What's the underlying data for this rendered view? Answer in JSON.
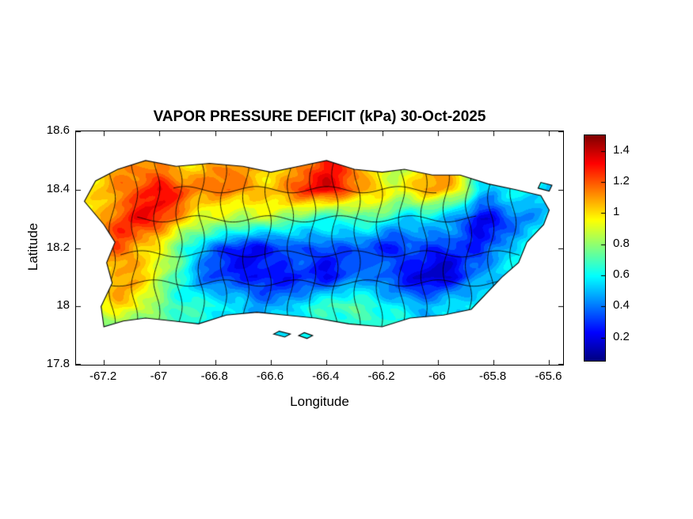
{
  "chart_data": {
    "type": "heatmap",
    "title": "VAPOR PRESSURE DEFICIT (kPa) 30-Oct-2025",
    "xlabel": "Longitude",
    "ylabel": "Latitude",
    "units": "kPa",
    "date": "30-Oct-2025",
    "xlim": [
      -67.3,
      -65.55
    ],
    "ylim": [
      17.8,
      18.6
    ],
    "xticks": [
      -67.2,
      -67,
      -66.8,
      -66.6,
      -66.4,
      -66.2,
      -66,
      -65.8,
      -65.6
    ],
    "yticks": [
      17.8,
      18,
      18.2,
      18.4,
      18.6
    ],
    "colormap": "jet",
    "clim": [
      0.05,
      1.5
    ],
    "colorbar_ticks": [
      0.2,
      0.4,
      0.6,
      0.8,
      1,
      1.2,
      1.4
    ],
    "grid": {
      "x": [
        -67.3,
        -67.25,
        -67.2,
        -67.15,
        -67.1,
        -67.05,
        -67,
        -66.95,
        -66.9,
        -66.85,
        -66.8,
        -66.75,
        -66.7,
        -66.65,
        -66.6,
        -66.55,
        -66.5,
        -66.45,
        -66.4,
        -66.35,
        -66.3,
        -66.25,
        -66.2,
        -66.15,
        -66.1,
        -66.05,
        -66,
        -65.95,
        -65.9,
        -65.85,
        -65.8,
        -65.75,
        -65.7,
        -65.65,
        -65.6,
        -65.55
      ],
      "y": [
        17.8,
        17.9,
        18,
        18.1,
        18.2,
        18.3,
        18.4,
        18.5,
        18.6
      ],
      "z": [
        [
          0.6,
          0.6,
          0.6,
          0.6,
          0.6,
          0.6,
          0.6,
          0.6,
          0.6,
          0.6,
          0.6,
          0.6,
          0.6,
          0.6,
          0.6,
          0.6,
          0.6,
          0.6,
          0.6,
          0.6,
          0.6,
          0.6,
          0.6,
          0.6,
          0.6,
          0.6,
          0.6,
          0.6,
          0.6,
          0.6,
          0.6,
          0.6,
          0.6,
          0.6,
          0.6,
          0.6
        ],
        [
          0.65,
          0.68,
          0.72,
          0.7,
          0.68,
          0.66,
          0.64,
          0.62,
          0.6,
          0.6,
          0.58,
          0.56,
          0.55,
          0.54,
          0.55,
          0.56,
          0.58,
          0.6,
          0.62,
          0.64,
          0.66,
          0.64,
          0.62,
          0.6,
          0.55,
          0.52,
          0.55,
          0.58,
          0.6,
          0.62,
          0.62,
          0.6,
          0.6,
          0.6,
          0.6,
          0.6
        ],
        [
          0.7,
          0.8,
          0.9,
          1,
          1,
          0.9,
          0.8,
          0.7,
          0.65,
          0.6,
          0.6,
          0.55,
          0.55,
          0.5,
          0.5,
          0.5,
          0.55,
          0.6,
          0.65,
          0.7,
          0.75,
          0.7,
          0.65,
          0.6,
          0.5,
          0.45,
          0.5,
          0.55,
          0.6,
          0.65,
          0.65,
          0.6,
          0.6,
          0.6,
          0.6,
          0.6
        ],
        [
          0.8,
          0.9,
          1,
          1.1,
          1.05,
          0.95,
          0.85,
          0.7,
          0.6,
          0.45,
          0.35,
          0.3,
          0.25,
          0.2,
          0.2,
          0.25,
          0.3,
          0.3,
          0.25,
          0.3,
          0.35,
          0.4,
          0.35,
          0.3,
          0.25,
          0.2,
          0.15,
          0.2,
          0.3,
          0.4,
          0.5,
          0.55,
          0.6,
          0.6,
          0.6,
          0.6
        ],
        [
          0.9,
          1,
          1.15,
          1.2,
          1.15,
          1.05,
          0.95,
          0.8,
          0.6,
          0.45,
          0.35,
          0.3,
          0.25,
          0.25,
          0.3,
          0.3,
          0.35,
          0.3,
          0.3,
          0.35,
          0.4,
          0.35,
          0.3,
          0.25,
          0.3,
          0.3,
          0.25,
          0.3,
          0.35,
          0.3,
          0.4,
          0.5,
          0.55,
          0.6,
          0.6,
          0.6
        ],
        [
          0.9,
          1,
          1.1,
          1.2,
          1.25,
          1.3,
          1.25,
          1.15,
          1.05,
          0.95,
          0.9,
          0.85,
          0.8,
          0.8,
          0.85,
          0.8,
          0.75,
          0.7,
          0.65,
          0.6,
          0.65,
          0.7,
          0.65,
          0.6,
          0.55,
          0.6,
          0.55,
          0.45,
          0.3,
          0.15,
          0.2,
          0.35,
          0.45,
          0.5,
          0.55,
          0.55
        ],
        [
          0.85,
          0.95,
          1.05,
          1.15,
          1.2,
          1.3,
          1.35,
          1.25,
          1.15,
          1.1,
          1.15,
          1.2,
          1.15,
          1.1,
          1.05,
          1.1,
          1.2,
          1.3,
          1.35,
          1.3,
          1.2,
          1.1,
          1,
          0.9,
          0.95,
          1.05,
          1.1,
          1.05,
          0.9,
          0.6,
          0.5,
          0.55,
          0.6,
          0.55,
          0.5,
          0.5
        ],
        [
          0.8,
          0.85,
          0.95,
          1,
          1.05,
          1.1,
          1.1,
          1.05,
          1,
          1,
          1.05,
          1.1,
          1.05,
          1,
          1,
          1.05,
          1.1,
          1.2,
          1.25,
          1.2,
          1.1,
          1,
          0.95,
          0.85,
          0.9,
          1,
          1.05,
          1,
          0.9,
          0.7,
          0.6,
          0.6,
          0.6,
          0.55,
          0.5,
          0.5
        ],
        [
          0.8,
          0.85,
          0.95,
          1,
          1.05,
          1.1,
          1.1,
          1.05,
          1,
          1,
          1.05,
          1.1,
          1.05,
          1,
          1,
          1.05,
          1.1,
          1.2,
          1.25,
          1.2,
          1.1,
          1,
          0.95,
          0.85,
          0.9,
          1,
          1.05,
          1,
          0.9,
          0.7,
          0.6,
          0.6,
          0.6,
          0.55,
          0.5,
          0.5
        ]
      ]
    },
    "map": {
      "outline": [
        [
          -67.27,
          18.36
        ],
        [
          -67.23,
          18.43
        ],
        [
          -67.15,
          18.47
        ],
        [
          -67.05,
          18.5
        ],
        [
          -66.94,
          18.48
        ],
        [
          -66.82,
          18.49
        ],
        [
          -66.7,
          18.48
        ],
        [
          -66.6,
          18.46
        ],
        [
          -66.5,
          18.48
        ],
        [
          -66.4,
          18.5
        ],
        [
          -66.3,
          18.47
        ],
        [
          -66.2,
          18.46
        ],
        [
          -66.12,
          18.47
        ],
        [
          -66.02,
          18.45
        ],
        [
          -65.92,
          18.45
        ],
        [
          -65.82,
          18.42
        ],
        [
          -65.72,
          18.4
        ],
        [
          -65.63,
          18.38
        ],
        [
          -65.6,
          18.33
        ],
        [
          -65.62,
          18.28
        ],
        [
          -65.68,
          18.22
        ],
        [
          -65.71,
          18.15
        ],
        [
          -65.77,
          18.1
        ],
        [
          -65.83,
          18.04
        ],
        [
          -65.88,
          17.99
        ],
        [
          -65.98,
          17.97
        ],
        [
          -66.1,
          17.96
        ],
        [
          -66.2,
          17.93
        ],
        [
          -66.32,
          17.94
        ],
        [
          -66.44,
          17.96
        ],
        [
          -66.55,
          17.97
        ],
        [
          -66.65,
          17.98
        ],
        [
          -66.76,
          17.97
        ],
        [
          -66.86,
          17.94
        ],
        [
          -66.95,
          17.95
        ],
        [
          -67.05,
          17.96
        ],
        [
          -67.13,
          17.95
        ],
        [
          -67.2,
          17.93
        ],
        [
          -67.21,
          18
        ],
        [
          -67.17,
          18.08
        ],
        [
          -67.19,
          18.15
        ],
        [
          -67.16,
          18.22
        ],
        [
          -67.2,
          18.28
        ],
        [
          -67.27,
          18.36
        ]
      ],
      "islets": [
        [
          [
            -66.59,
            17.905
          ],
          [
            -66.55,
            17.895
          ],
          [
            -66.53,
            17.905
          ],
          [
            -66.57,
            17.915
          ]
        ],
        [
          [
            -66.5,
            17.9
          ],
          [
            -66.47,
            17.89
          ],
          [
            -66.45,
            17.9
          ],
          [
            -66.48,
            17.91
          ]
        ],
        [
          [
            -65.64,
            18.405
          ],
          [
            -65.6,
            18.395
          ],
          [
            -65.59,
            18.415
          ],
          [
            -65.63,
            18.425
          ]
        ]
      ],
      "boundaries": {
        "meridians": [
          -67.17,
          -67.09,
          -67.01,
          -66.93,
          -66.85,
          -66.77,
          -66.69,
          -66.61,
          -66.53,
          -66.45,
          -66.37,
          -66.29,
          -66.21,
          -66.13,
          -66.05,
          -65.97,
          -65.89,
          -65.81,
          -65.73
        ],
        "parallels": [
          {
            "lat": 18.08,
            "lon0": -67.18,
            "lon1": -65.78
          },
          {
            "lat": 18.18,
            "lon0": -67.14,
            "lon1": -65.7
          },
          {
            "lat": 18.3,
            "lon0": -67.08,
            "lon1": -65.86
          },
          {
            "lat": 18.4,
            "lon0": -66.95,
            "lon1": -66.0
          }
        ]
      }
    },
    "colors": {
      "background": "#ffffff",
      "axis": "#000000"
    }
  }
}
